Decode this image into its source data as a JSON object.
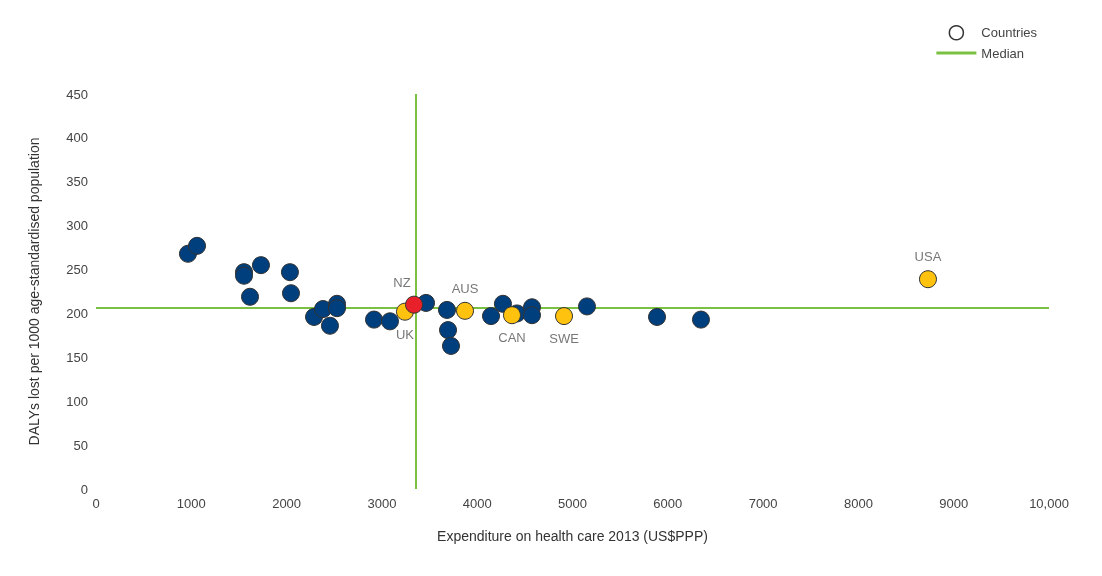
{
  "chart_data": {
    "type": "scatter",
    "xlabel": "Expenditure on health care 2013 (US$PPP)",
    "ylabel": "DALYs lost per 1000 age-standardised population",
    "xlim": [
      0,
      10000
    ],
    "xticks": [
      0,
      1000,
      2000,
      3000,
      4000,
      5000,
      6000,
      7000,
      8000,
      9000,
      {
        "value": 10000,
        "label": "10,000"
      }
    ],
    "ylim": [
      0,
      450
    ],
    "yticks": [
      0,
      50,
      100,
      150,
      200,
      250,
      300,
      350,
      400,
      450
    ],
    "grid": false,
    "legend": "top right",
    "marker": "circle",
    "series": [
      {
        "name": "Countries",
        "x": [
          965,
          1060,
          1553,
          1553,
          1731,
          1616,
          2035,
          2046,
          2288,
          2382,
          2455,
          2529,
          2529,
          2917,
          3085,
          3463,
          3683,
          3694,
          3725,
          4145,
          4270,
          4417,
          4575,
          4575,
          5152,
          5887,
          6348,
          3242,
          3872,
          4365,
          4911,
          8730,
          3337
        ],
        "values": [
          268,
          277,
          247,
          243,
          255,
          219,
          247,
          223,
          196,
          205,
          186,
          211,
          206,
          193,
          191,
          212,
          204,
          181,
          163,
          197,
          211,
          200,
          207,
          198,
          208,
          196,
          193,
          202,
          203,
          198,
          197,
          239,
          210
        ],
        "colors": [
          "#003f7d",
          "#003f7d",
          "#003f7d",
          "#003f7d",
          "#003f7d",
          "#003f7d",
          "#003f7d",
          "#003f7d",
          "#003f7d",
          "#003f7d",
          "#003f7d",
          "#003f7d",
          "#003f7d",
          "#003f7d",
          "#003f7d",
          "#003f7d",
          "#003f7d",
          "#003f7d",
          "#003f7d",
          "#003f7d",
          "#003f7d",
          "#003f7d",
          "#003f7d",
          "#003f7d",
          "#003f7d",
          "#003f7d",
          "#003f7d",
          "#ffc20e",
          "#ffc20e",
          "#ffc20e",
          "#ffc20e",
          "#ffc20e",
          "#e8202a"
        ]
      }
    ],
    "ref_lines": [
      {
        "axis": "x",
        "value": 3350,
        "label": "Median",
        "color": "#7ac143"
      },
      {
        "axis": "y",
        "value": 207,
        "label": null,
        "color": "#7ac143"
      }
    ],
    "annotations": [
      {
        "text": "NZ",
        "x": 3337,
        "y": 210
      },
      {
        "text": "UK",
        "x": 3242,
        "y": 202
      },
      {
        "text": "AUS",
        "x": 3872,
        "y": 203
      },
      {
        "text": "CAN",
        "x": 4365,
        "y": 198
      },
      {
        "text": "SWE",
        "x": 4911,
        "y": 197
      },
      {
        "text": "USA",
        "x": 8730,
        "y": 239
      }
    ]
  }
}
